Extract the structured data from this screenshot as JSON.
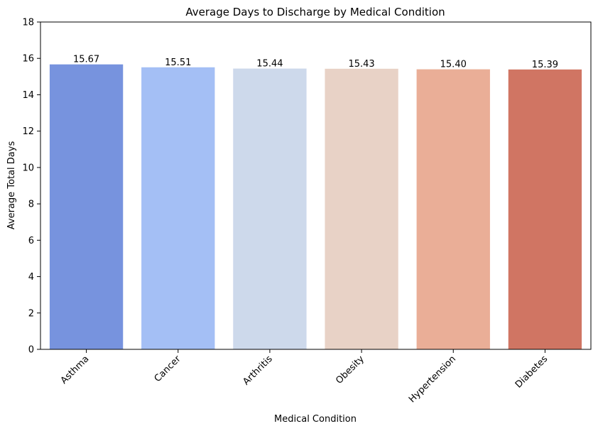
{
  "chart_data": {
    "type": "bar",
    "title": "Average Days to Discharge by Medical Condition",
    "xlabel": "Medical Condition",
    "ylabel": "Average Total Days",
    "categories": [
      "Asthma",
      "Cancer",
      "Arthritis",
      "Obesity",
      "Hypertension",
      "Diabetes"
    ],
    "values": [
      15.67,
      15.51,
      15.44,
      15.43,
      15.4,
      15.39
    ],
    "value_labels": [
      "15.67",
      "15.51",
      "15.44",
      "15.43",
      "15.40",
      "15.39"
    ],
    "colors": [
      "#7793de",
      "#a4bff5",
      "#cdd9eb",
      "#e8d2c6",
      "#eaae97",
      "#d07563"
    ],
    "ylim": [
      0,
      18
    ],
    "yticks": [
      0,
      2,
      4,
      6,
      8,
      10,
      12,
      14,
      16,
      18
    ],
    "ytick_labels": [
      "0",
      "2",
      "4",
      "6",
      "8",
      "10",
      "12",
      "14",
      "16",
      "18"
    ],
    "grid": false,
    "legend": "none"
  }
}
